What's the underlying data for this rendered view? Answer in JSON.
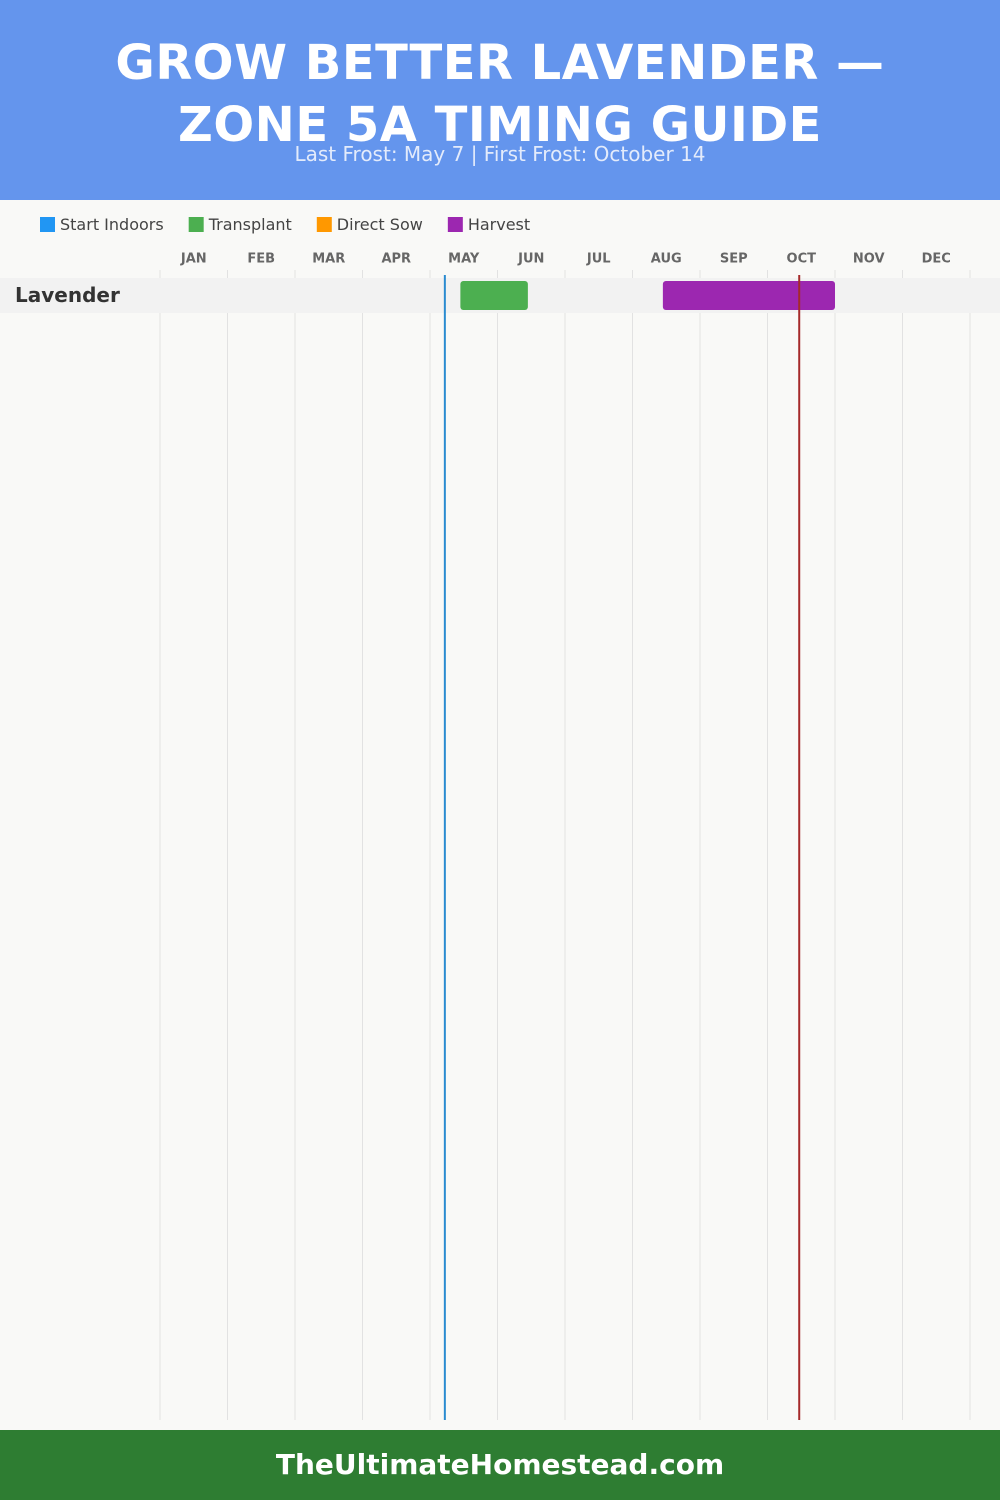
{
  "chart_data": {
    "type": "gantt",
    "title": "GROW BETTER LAVENDER — ZONE 5A TIMING GUIDE",
    "subtitle": "Last Frost: May 7 | First Frost: October 14",
    "months": [
      "JAN",
      "FEB",
      "MAR",
      "APR",
      "MAY",
      "JUN",
      "JUL",
      "AUG",
      "SEP",
      "OCT",
      "NOV",
      "DEC"
    ],
    "xlim": [
      0,
      12
    ],
    "xticks": [
      0,
      1,
      2,
      3,
      4,
      5,
      6,
      7,
      8,
      9,
      10,
      11,
      12
    ],
    "categories": [
      "Lavender"
    ],
    "series": [
      {
        "name": "Start Indoors",
        "color": "#2196f3",
        "values": [
          null
        ]
      },
      {
        "name": "Transplant",
        "color": "#4caf50",
        "values": [
          [
            4.45,
            5.45
          ]
        ]
      },
      {
        "name": "Direct Sow",
        "color": "#ff9800",
        "values": [
          null
        ]
      },
      {
        "name": "Harvest",
        "color": "#9c27b0",
        "values": [
          [
            7.45,
            10.0
          ]
        ]
      }
    ],
    "frost_lines": [
      {
        "value": 4.22,
        "color": "#2a8bd0"
      },
      {
        "value": 9.47,
        "color": "#a52a2a"
      }
    ],
    "grid": true
  },
  "footer": "TheUltimateHomestead.com"
}
